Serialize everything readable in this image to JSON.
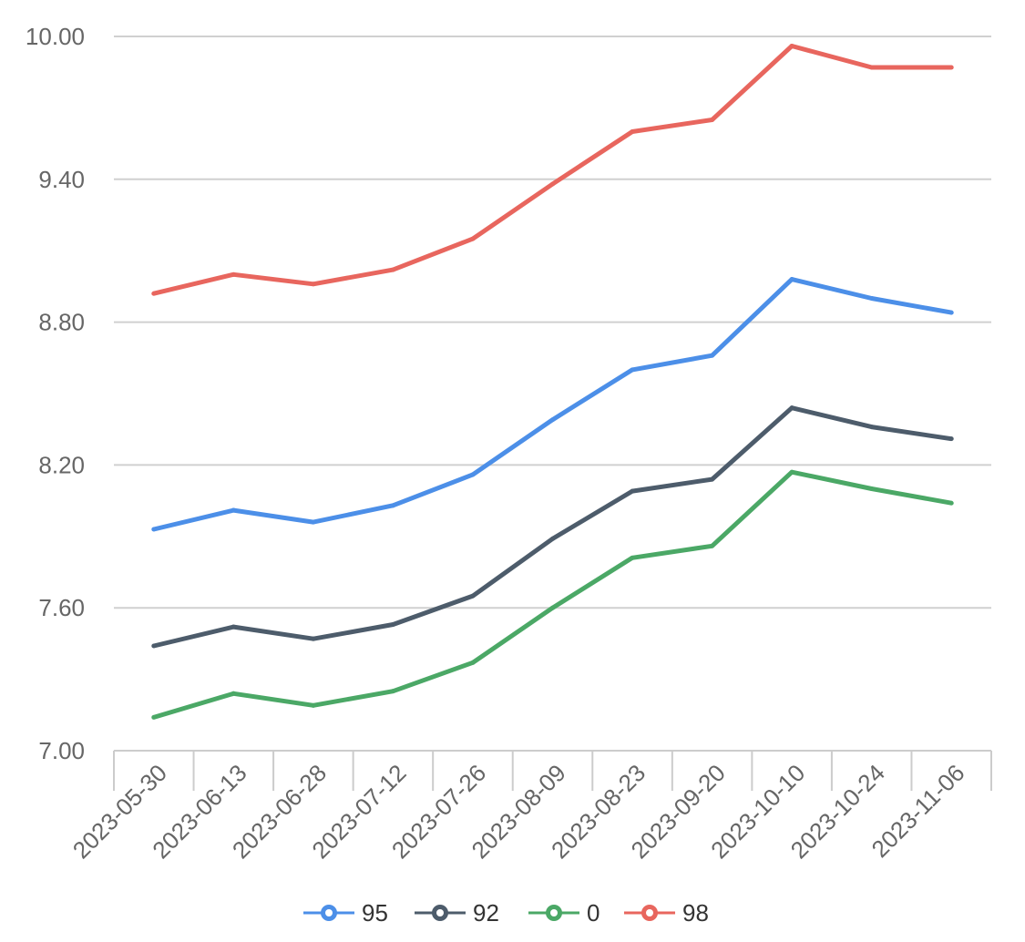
{
  "chart_data": {
    "type": "line",
    "title": "",
    "xlabel": "",
    "ylabel": "",
    "x": [
      "2023-05-30",
      "2023-06-13",
      "2023-06-28",
      "2023-07-12",
      "2023-07-26",
      "2023-08-09",
      "2023-08-23",
      "2023-09-20",
      "2023-10-10",
      "2023-10-24",
      "2023-11-06"
    ],
    "ylim": [
      7.0,
      10.0
    ],
    "yticks": [
      "7.00",
      "7.60",
      "8.20",
      "8.80",
      "9.40",
      "10.00"
    ],
    "grid": true,
    "legend_position": "bottom",
    "series": [
      {
        "name": "95",
        "color": "#4C8FE8",
        "values": [
          7.93,
          8.01,
          7.96,
          8.03,
          8.16,
          8.39,
          8.6,
          8.66,
          8.98,
          8.9,
          8.84
        ]
      },
      {
        "name": "92",
        "color": "#4D5C6B",
        "values": [
          7.44,
          7.52,
          7.47,
          7.53,
          7.65,
          7.89,
          8.09,
          8.14,
          8.44,
          8.36,
          8.31
        ]
      },
      {
        "name": "0",
        "color": "#4BA866",
        "values": [
          7.14,
          7.24,
          7.19,
          7.25,
          7.37,
          7.6,
          7.81,
          7.86,
          8.17,
          8.1,
          8.04
        ]
      },
      {
        "name": "98",
        "color": "#E8665E",
        "values": [
          8.92,
          9.0,
          8.96,
          9.02,
          9.15,
          9.38,
          9.6,
          9.65,
          9.96,
          9.87,
          9.87
        ]
      }
    ]
  }
}
